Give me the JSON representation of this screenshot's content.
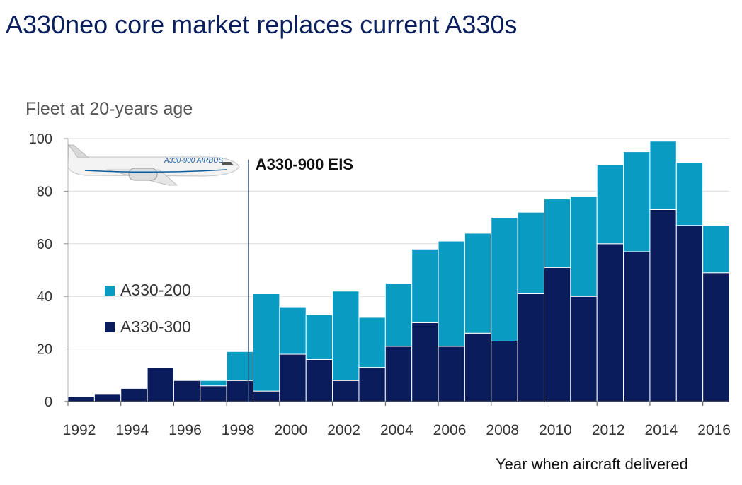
{
  "header": {
    "title": "A330neo core market replaces current A330s"
  },
  "colors": {
    "a330_200": "#0a9bc3",
    "a330_300": "#0b1c5c",
    "title": "#0a1f5c"
  },
  "chart_data": {
    "type": "bar",
    "stacked": true,
    "ylabel": "Fleet at 20-years age",
    "xlabel": "Year when aircraft delivered",
    "ylim": [
      0,
      100
    ],
    "yticks": [
      0,
      20,
      40,
      60,
      80,
      100
    ],
    "grid": true,
    "legend_position": "left",
    "categories": [
      "1992",
      "1993",
      "1994",
      "1995",
      "1996",
      "1997",
      "1998",
      "1999",
      "2000",
      "2001",
      "2002",
      "2003",
      "2004",
      "2005",
      "2006",
      "2007",
      "2008",
      "2009",
      "2010",
      "2011",
      "2012",
      "2013",
      "2014",
      "2015",
      "2016"
    ],
    "xticklabels": [
      "1992",
      "1994",
      "1996",
      "1998",
      "2000",
      "2002",
      "2004",
      "2006",
      "2008",
      "2010",
      "2012",
      "2014",
      "2016"
    ],
    "series": [
      {
        "name": "A330-300",
        "color": "#0b1c5c",
        "values": [
          2,
          3,
          5,
          13,
          8,
          6,
          8,
          4,
          18,
          16,
          8,
          13,
          21,
          30,
          21,
          26,
          23,
          41,
          51,
          40,
          60,
          57,
          73,
          67,
          49
        ]
      },
      {
        "name": "A330-200",
        "color": "#0a9bc3",
        "values": [
          0,
          0,
          0,
          0,
          0,
          2,
          11,
          37,
          18,
          17,
          34,
          19,
          24,
          28,
          40,
          38,
          47,
          31,
          26,
          38,
          30,
          38,
          26,
          24,
          18
        ]
      }
    ],
    "annotations": [
      {
        "text": "A330-900 EIS",
        "x": "1998"
      }
    ],
    "image_annotation": {
      "name": "A330-900 aircraft",
      "livery_text": "A330-900 AIRBUS"
    }
  }
}
